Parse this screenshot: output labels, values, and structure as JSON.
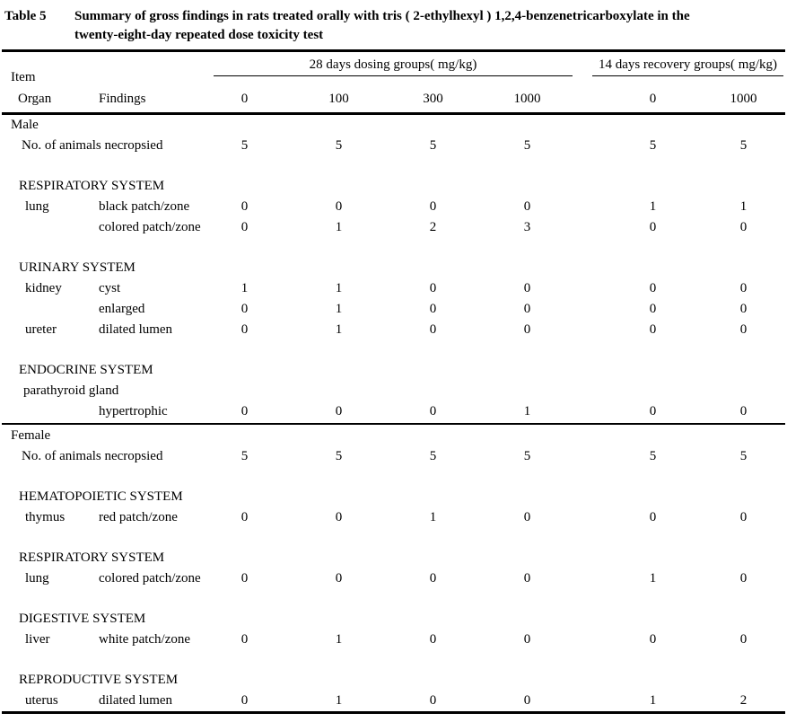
{
  "caption": {
    "label": "Table 5",
    "line1": "Summary of gross findings in rats treated orally with tris ( 2-ethylhexyl )  1,2,4-benzenetricarboxylate in the",
    "line2": "twenty-eight-day repeated dose toxicity test"
  },
  "header": {
    "item": "Item",
    "organ": "Organ",
    "findings": "Findings",
    "dosing_group": "28 days dosing groups( mg/kg)",
    "recovery_group": "14 days recovery groups( mg/kg)",
    "doses": [
      "0",
      "100",
      "300",
      "1000",
      "0",
      "1000"
    ]
  },
  "table": {
    "rows": [
      {
        "type": "gender",
        "label": "Male"
      },
      {
        "type": "count",
        "label": "No. of animals necropsied",
        "values": [
          "5",
          "5",
          "5",
          "5",
          "5",
          "5"
        ]
      },
      {
        "type": "blank"
      },
      {
        "type": "system",
        "label": "RESPIRATORY SYSTEM"
      },
      {
        "type": "finding",
        "organ": "lung",
        "finding": "black patch/zone",
        "values": [
          "0",
          "0",
          "0",
          "0",
          "1",
          "1"
        ]
      },
      {
        "type": "finding",
        "organ": "",
        "finding": "colored patch/zone",
        "values": [
          "0",
          "1",
          "2",
          "3",
          "0",
          "0"
        ]
      },
      {
        "type": "blank"
      },
      {
        "type": "system",
        "label": "URINARY SYSTEM"
      },
      {
        "type": "finding",
        "organ": "kidney",
        "finding": "cyst",
        "values": [
          "1",
          "1",
          "0",
          "0",
          "0",
          "0"
        ]
      },
      {
        "type": "finding",
        "organ": "",
        "finding": "enlarged",
        "values": [
          "0",
          "1",
          "0",
          "0",
          "0",
          "0"
        ]
      },
      {
        "type": "finding",
        "organ": "ureter",
        "finding": "dilated lumen",
        "values": [
          "0",
          "1",
          "0",
          "0",
          "0",
          "0"
        ]
      },
      {
        "type": "blank"
      },
      {
        "type": "system",
        "label": "ENDOCRINE SYSTEM"
      },
      {
        "type": "organ-only",
        "label": "parathyroid gland"
      },
      {
        "type": "finding",
        "organ": "",
        "finding": "hypertrophic",
        "values": [
          "0",
          "0",
          "0",
          "1",
          "0",
          "0"
        ]
      },
      {
        "type": "rule"
      },
      {
        "type": "gender",
        "label": "Female"
      },
      {
        "type": "count",
        "label": "No. of animals necropsied",
        "values": [
          "5",
          "5",
          "5",
          "5",
          "5",
          "5"
        ]
      },
      {
        "type": "blank"
      },
      {
        "type": "system",
        "label": "HEMATOPOIETIC SYSTEM"
      },
      {
        "type": "finding",
        "organ": "thymus",
        "finding": "red patch/zone",
        "values": [
          "0",
          "0",
          "1",
          "0",
          "0",
          "0"
        ]
      },
      {
        "type": "blank"
      },
      {
        "type": "system",
        "label": "RESPIRATORY SYSTEM"
      },
      {
        "type": "finding",
        "organ": "lung",
        "finding": "colored patch/zone",
        "values": [
          "0",
          "0",
          "0",
          "0",
          "1",
          "0"
        ]
      },
      {
        "type": "blank"
      },
      {
        "type": "system",
        "label": "DIGESTIVE SYSTEM"
      },
      {
        "type": "finding",
        "organ": "liver",
        "finding": "white patch/zone",
        "values": [
          "0",
          "1",
          "0",
          "0",
          "0",
          "0"
        ]
      },
      {
        "type": "blank"
      },
      {
        "type": "system",
        "label": "REPRODUCTIVE SYSTEM"
      },
      {
        "type": "finding",
        "organ": "uterus",
        "finding": "dilated lumen",
        "values": [
          "0",
          "1",
          "0",
          "0",
          "1",
          "2"
        ]
      }
    ]
  }
}
